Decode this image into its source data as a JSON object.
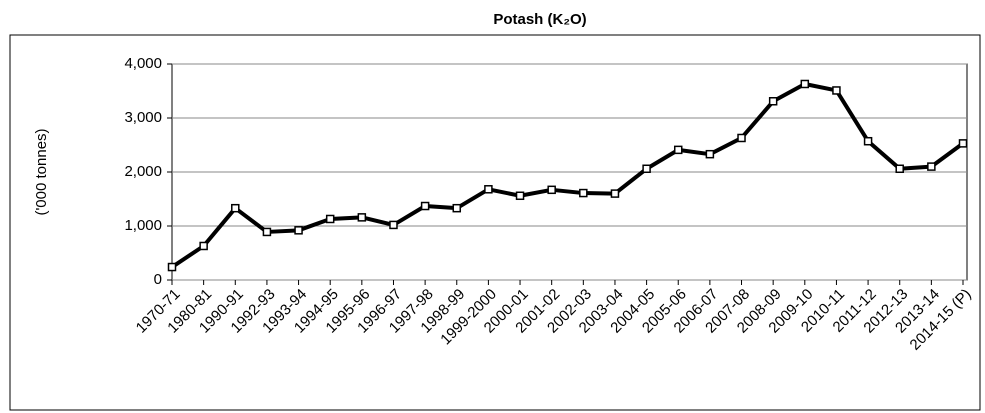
{
  "chart_data": {
    "type": "line",
    "title": "Potash (K₂O)",
    "y_label": "('000 tonnes)",
    "categories": [
      "1970-71",
      "1980-81",
      "1990-91",
      "1992-93",
      "1993-94",
      "1994-95",
      "1995-96",
      "1996-97",
      "1997-98",
      "1998-99",
      "1999-2000",
      "2000-01",
      "2001-02",
      "2002-03",
      "2003-04",
      "2004-05",
      "2005-06",
      "2006-07",
      "2007-08",
      "2008-09",
      "2009-10",
      "2010-11",
      "2011-12",
      "2012-13",
      "2013-14",
      "2014-15 (P)"
    ],
    "values": [
      240,
      630,
      1330,
      890,
      920,
      1130,
      1160,
      1020,
      1370,
      1330,
      1680,
      1560,
      1670,
      1610,
      1600,
      2060,
      2410,
      2330,
      2630,
      3310,
      3630,
      3510,
      2570,
      2060,
      2100,
      2530
    ],
    "color": "#000000",
    "ylim": [
      0,
      4000
    ],
    "yticks": [
      0,
      {
        "value": 1000,
        "label": "1,000"
      },
      {
        "value": 2000,
        "label": "2,000"
      },
      {
        "value": 3000,
        "label": "3,000"
      },
      {
        "value": 4000,
        "label": "4,000"
      }
    ],
    "grid": true
  }
}
